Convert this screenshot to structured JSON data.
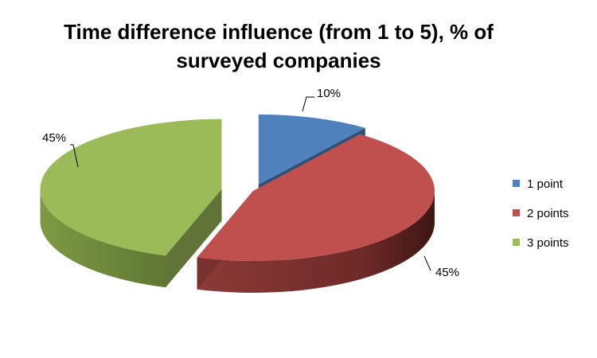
{
  "chart_data": {
    "type": "pie",
    "title_lines": [
      "Time difference influence (from 1 to 5), % of",
      "surveyed companies"
    ],
    "categories": [
      "1 point",
      "2 points",
      "3 points"
    ],
    "values": [
      10,
      45,
      45
    ],
    "data_labels": [
      "10%",
      "45%",
      "45%"
    ],
    "colors": [
      "#4F81BD",
      "#C0504D",
      "#9BBB59"
    ],
    "exploded": true,
    "three_d": true,
    "legend_position": "right"
  }
}
